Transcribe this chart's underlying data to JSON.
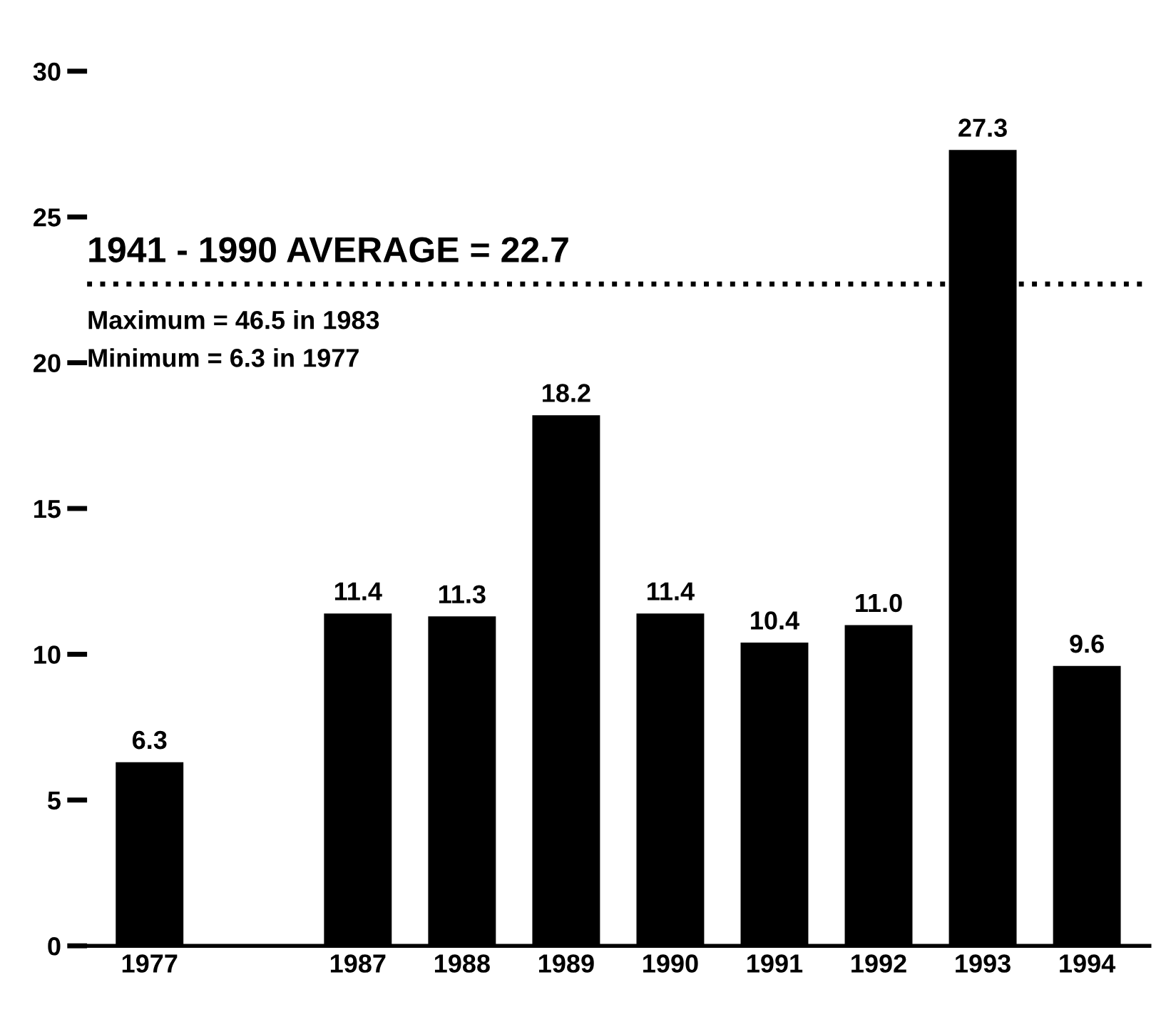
{
  "chart_data": {
    "type": "bar",
    "categories": [
      "1977",
      null,
      "1987",
      "1988",
      "1989",
      "1990",
      "1991",
      "1992",
      "1993",
      "1994"
    ],
    "values": [
      6.3,
      null,
      11.4,
      11.3,
      18.2,
      11.4,
      10.4,
      11.0,
      27.3,
      9.6
    ],
    "color": "#000000",
    "ylim": [
      0,
      30
    ],
    "yticks": [
      0,
      5,
      10,
      15,
      20,
      25,
      30
    ],
    "grid": false,
    "value_labels": [
      "6.3",
      null,
      "11.4",
      "11.3",
      "18.2",
      "11.4",
      "10.4",
      "11.0",
      "27.3",
      "9.6"
    ],
    "ref_lines": [
      {
        "axis": "y",
        "value": 22.7,
        "label": "1941 - 1990 AVERAGE = 22.7",
        "color": "#000000",
        "line_style": "dotted"
      }
    ],
    "annotations": [
      "Maximum = 46.5 in 1983",
      "Minimum = 6.3 in 1977"
    ]
  }
}
